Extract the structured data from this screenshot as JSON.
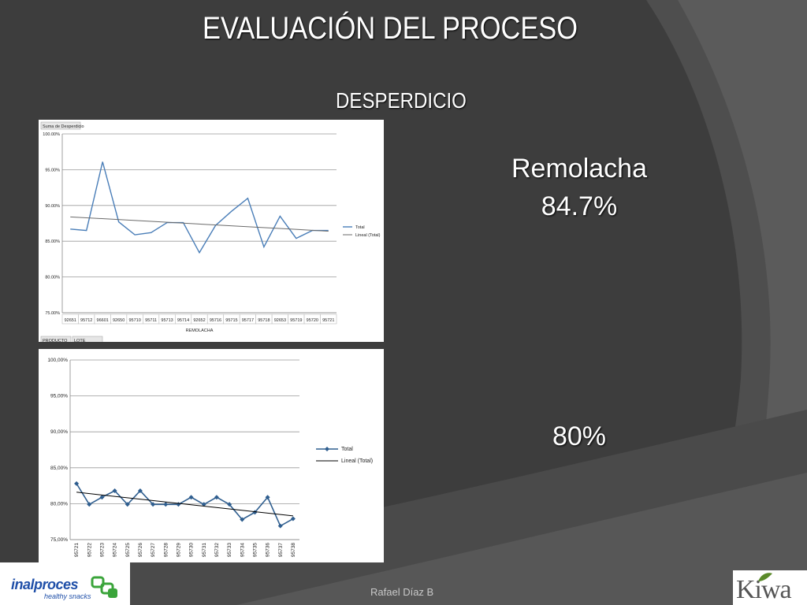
{
  "slide": {
    "title": "EVALUACIÓN DEL PROCESO",
    "subtitle": "DESPERDICIO",
    "product_label": "Remolacha",
    "value_1": "84.7%",
    "value_2": "80%",
    "footer_text": "Rafael Díaz B",
    "logo_left_text": "inalproces",
    "logo_left_tagline": "healthy snacks",
    "logo_right_text": "Kiwa"
  },
  "colors": {
    "background": "#3d3d3d",
    "arc": "#5a5a5a",
    "series_line": "#4a7eb8",
    "series_line_2": "#2f5e8f",
    "trend_line": "#000000",
    "grid": "#9a9a9a"
  },
  "chart_data": [
    {
      "type": "line",
      "title": "",
      "field_button": "Suma de Desperdicio",
      "categories": [
        "92651",
        "95712",
        "96601",
        "92650",
        "95710",
        "95711",
        "95713",
        "95714",
        "92652",
        "95716",
        "95715",
        "95717",
        "95718",
        "92653",
        "95719",
        "95720",
        "95721"
      ],
      "xlabel": "REMOLACHA",
      "x_field_buttons": [
        "PRODUCTO",
        "LOTE"
      ],
      "ylim": [
        75,
        100
      ],
      "yticks": [
        "75.00%",
        "80.00%",
        "85.00%",
        "90.00%",
        "95.00%",
        "100.00%"
      ],
      "ytick_values": [
        75,
        80,
        85,
        90,
        95,
        100
      ],
      "grid": true,
      "legend": "right",
      "series": [
        {
          "name": "Total",
          "values": [
            86.7,
            86.5,
            96.1,
            87.7,
            85.9,
            86.2,
            87.6,
            87.6,
            83.4,
            87.2,
            89.2,
            91.0,
            84.2,
            88.5,
            85.4,
            86.5,
            86.5
          ]
        }
      ],
      "trend": {
        "name": "Lineal (Total)",
        "start": 88.4,
        "end": 86.4
      }
    },
    {
      "type": "line",
      "title": "",
      "categories": [
        "95721",
        "95722",
        "95723",
        "95724",
        "95725",
        "95726",
        "95727",
        "95728",
        "95729",
        "95730",
        "95731",
        "95732",
        "95733",
        "95734",
        "95735",
        "95736",
        "95737",
        "95738"
      ],
      "ylim": [
        75,
        100
      ],
      "yticks": [
        "75,00%",
        "80,00%",
        "85,00%",
        "90,00%",
        "95,00%",
        "100,00%"
      ],
      "ytick_values": [
        75,
        80,
        85,
        90,
        95,
        100
      ],
      "grid": true,
      "legend": "right",
      "series": [
        {
          "name": "Total",
          "values": [
            82.8,
            79.9,
            80.9,
            81.8,
            79.9,
            81.8,
            79.9,
            79.9,
            79.9,
            80.9,
            79.9,
            80.9,
            79.9,
            77.8,
            78.8,
            80.9,
            76.9,
            77.9
          ]
        }
      ],
      "trend": {
        "name": "Lineal (Total)",
        "start": 81.6,
        "end": 78.3
      }
    }
  ]
}
